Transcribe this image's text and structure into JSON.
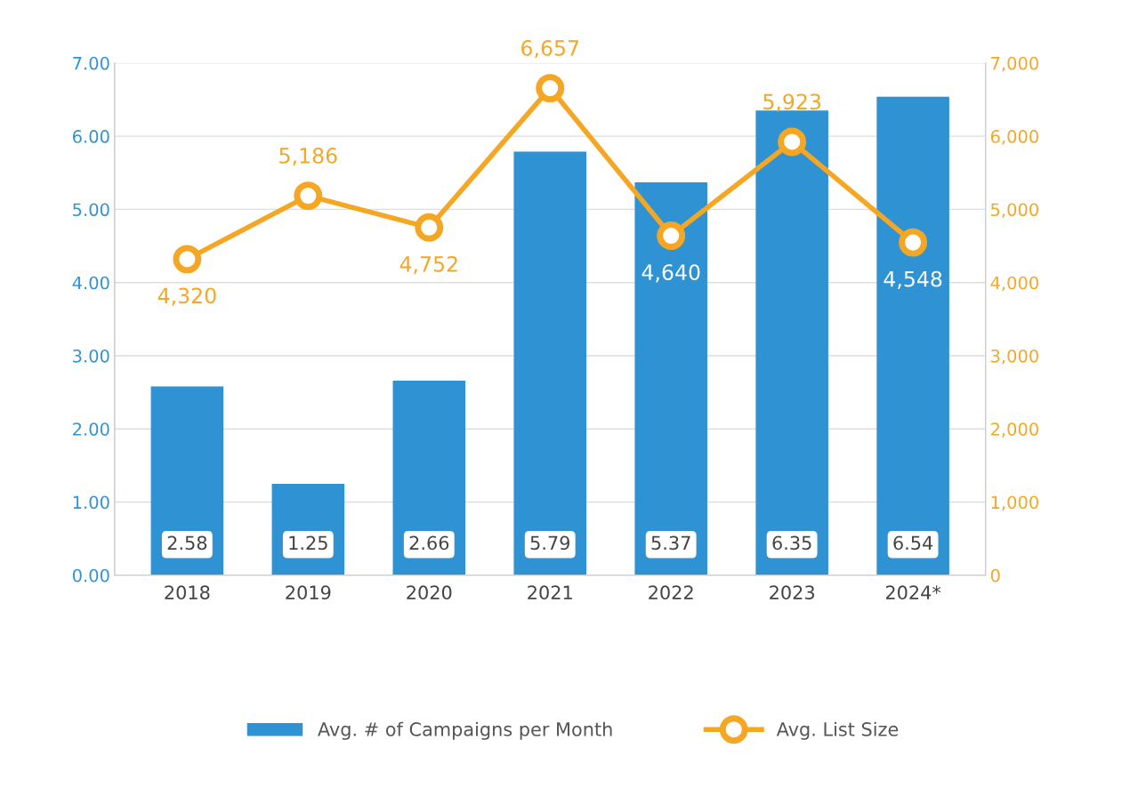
{
  "chart_data": {
    "type": "bar",
    "categories": [
      "2018",
      "2019",
      "2020",
      "2021",
      "2022",
      "2023",
      "2024*"
    ],
    "series": [
      {
        "name": "Avg. # of Campaigns per Month",
        "color": "#2f93d3",
        "values": [
          2.58,
          1.25,
          2.66,
          5.79,
          5.37,
          6.35,
          6.54
        ],
        "value_labels": [
          "2.58",
          "1.25",
          "2.66",
          "5.79",
          "5.37",
          "6.35",
          "6.54"
        ]
      },
      {
        "name": "Avg. List Size",
        "type": "line",
        "axis": "y2",
        "color": "#f5a623",
        "marker": "circle",
        "values": [
          4320,
          5186,
          4752,
          6657,
          4640,
          5923,
          4548
        ],
        "value_labels": [
          "4,320",
          "5,186",
          "4,752",
          "6,657",
          "4,640",
          "5,923",
          "4,548"
        ]
      }
    ],
    "ylim": [
      0,
      7
    ],
    "yticks": [
      {
        "value": 0,
        "label": "0.00"
      },
      {
        "value": 1,
        "label": "1.00"
      },
      {
        "value": 2,
        "label": "2.00"
      },
      {
        "value": 3,
        "label": "3.00"
      },
      {
        "value": 4,
        "label": "4.00"
      },
      {
        "value": 5,
        "label": "5.00"
      },
      {
        "value": 6,
        "label": "6.00"
      },
      {
        "value": 7,
        "label": "7.00"
      }
    ],
    "y2lim": [
      0,
      7000
    ],
    "y2ticks": [
      0,
      {
        "value": 1000,
        "label": "1,000"
      },
      {
        "value": 2000,
        "label": "2,000"
      },
      {
        "value": 3000,
        "label": "3,000"
      },
      {
        "value": 4000,
        "label": "4,000"
      },
      {
        "value": 5000,
        "label": "5,000"
      },
      {
        "value": 6000,
        "label": "6,000"
      },
      {
        "value": 7000,
        "label": "7,000"
      }
    ],
    "grid": "y",
    "legend": "bottom"
  }
}
